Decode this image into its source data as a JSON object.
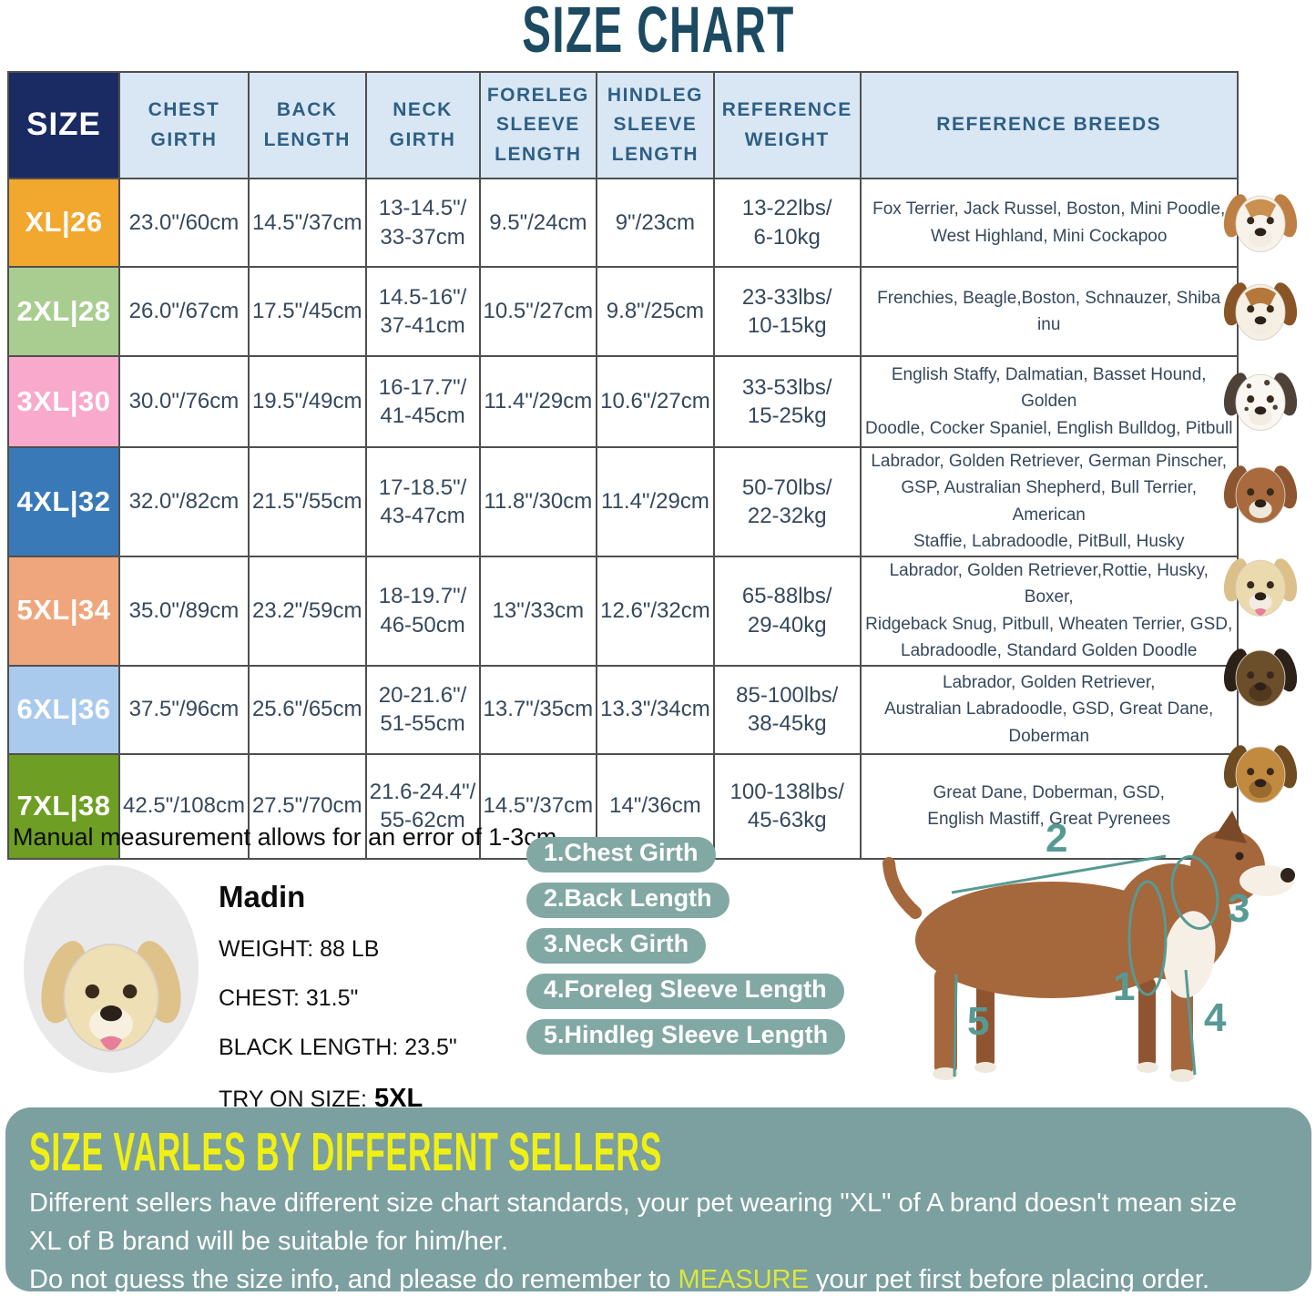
{
  "title": "SIZE CHART",
  "table": {
    "header": {
      "size": "SIZE",
      "columns": [
        "CHEST\nGIRTH",
        "BACK\nLENGTH",
        "NECK\nGIRTH",
        "FORELEG\nSLEEVE\nLENGTH",
        "HINDLEG\nSLEEVE\nLENGTH",
        "REFERENCE\nWEIGHT",
        "REFERENCE BREEDS"
      ]
    },
    "rows": [
      {
        "size": "XL|26",
        "size_color": "#F2A72E",
        "chest_girth": "23.0\"/60cm",
        "back_length": "14.5\"/37cm",
        "neck_girth": "13-14.5\"/\n33-37cm",
        "foreleg_sleeve": "9.5\"/24cm",
        "hindleg_sleeve": "9\"/23cm",
        "reference_weight": "13-22lbs/\n6-10kg",
        "reference_breeds": "Fox Terrier, Jack Russel, Boston, Mini Poodle,\nWest Highland, Mini Cockapoo",
        "photo": "jack-russell-terrier-photo",
        "dog_colors": {
          "head": "#F7F3EB",
          "ear": "#BE7F45",
          "crown": "#C9904F"
        }
      },
      {
        "size": "2XL|28",
        "size_color": "#A9CD90",
        "chest_girth": "26.0\"/67cm",
        "back_length": "17.5\"/45cm",
        "neck_girth": "14.5-16\"/\n37-41cm",
        "foreleg_sleeve": "10.5\"/27cm",
        "hindleg_sleeve": "9.8\"/25cm",
        "reference_weight": "23-33lbs/\n10-15kg",
        "reference_breeds": "Frenchies, Beagle,Boston, Schnauzer, Shiba inu",
        "photo": "beagle-photo",
        "dog_colors": {
          "head": "#F6EFE3",
          "ear": "#8A5526",
          "crown": "#B5773C"
        }
      },
      {
        "size": "3XL|30",
        "size_color": "#F8A9CC",
        "chest_girth": "30.0\"/76cm",
        "back_length": "19.5\"/49cm",
        "neck_girth": "16-17.7\"/\n41-45cm",
        "foreleg_sleeve": "11.4\"/29cm",
        "hindleg_sleeve": "10.6\"/27cm",
        "reference_weight": "33-53lbs/\n15-25kg",
        "reference_breeds": "English Staffy, Dalmatian, Basset Hound, Golden\nDoodle, Cocker Spaniel, English Bulldog, Pitbull",
        "photo": "dalmatian-photo",
        "dog_colors": {
          "head": "#FAF7F2",
          "ear": "#4E4238",
          "spots": true
        }
      },
      {
        "size": "4XL|32",
        "size_color": "#3979B7",
        "chest_girth": "32.0\"/82cm",
        "back_length": "21.5\"/55cm",
        "neck_girth": "17-18.5\"/\n43-47cm",
        "foreleg_sleeve": "11.8\"/30cm",
        "hindleg_sleeve": "11.4\"/29cm",
        "reference_weight": "50-70lbs/\n22-32kg",
        "reference_breeds": "Labrador, Golden Retriever, German Pinscher,\nGSP, Australian Shepherd, Bull Terrier, American\nStaffie, Labradoodle, PitBull, Husky",
        "photo": "american-staffordshire-photo",
        "dog_colors": {
          "head": "#A96A3E",
          "ear": "#8E5630",
          "muzzle": "#EFE7DA"
        }
      },
      {
        "size": "5XL|34",
        "size_color": "#EFA67C",
        "chest_girth": "35.0\"/89cm",
        "back_length": "23.2\"/59cm",
        "neck_girth": "18-19.7\"/\n46-50cm",
        "foreleg_sleeve": "13\"/33cm",
        "hindleg_sleeve": "12.6\"/32cm",
        "reference_weight": "65-88lbs/\n29-40kg",
        "reference_breeds": "Labrador, Golden Retriever,Rottie, Husky, Boxer,\nRidgeback Snug, Pitbull, Wheaten Terrier, GSD,\nLabradoodle, Standard Golden Doodle",
        "photo": "labrador-photo",
        "dog_colors": {
          "head": "#EADAAE",
          "ear": "#DCC089",
          "tongue": true
        }
      },
      {
        "size": "6XL|36",
        "size_color": "#A9CAEC",
        "chest_girth": "37.5\"/96cm",
        "back_length": "25.6\"/65cm",
        "neck_girth": "20-21.6\"/\n51-55cm",
        "foreleg_sleeve": "13.7\"/35cm",
        "hindleg_sleeve": "13.3\"/34cm",
        "reference_weight": "85-100lbs/\n38-45kg",
        "reference_breeds": "Labrador, Golden Retriever,\nAustralian Labradoodle, GSD, Great Dane,\nDoberman",
        "photo": "german-shepherd-photo",
        "dog_colors": {
          "head": "#6B4E2A",
          "ear": "#2B2118",
          "muzzle": "#51391F"
        }
      },
      {
        "size": "7XL|38",
        "size_color": "#6E9E23",
        "chest_girth": "42.5\"/108cm",
        "back_length": "27.5\"/70cm",
        "neck_girth": "21.6-24.4\"/\n55-62cm",
        "foreleg_sleeve": "14.5\"/37cm",
        "hindleg_sleeve": "14\"/36cm",
        "reference_weight": "100-138lbs/\n45-63kg",
        "reference_breeds": "Great Dane, Doberman, GSD,\nEnglish Mastiff, Great Pyrenees",
        "photo": "great-dane-photo",
        "dog_colors": {
          "head": "#C28A3F",
          "ear": "#6E4B20",
          "muzzle": "#9A6A2E"
        }
      }
    ]
  },
  "note": "Manual measurement allows for an error of 1-3cm",
  "model_dog": {
    "name": "Madin",
    "weight": "WEIGHT: 88 LB",
    "chest": "CHEST: 31.5\"",
    "back_length": "BLACK LENGTH: 23.5\"",
    "try_on_label": "TRY ON SIZE:",
    "try_on_size": "5XL",
    "photo": "labrador-model-photo"
  },
  "measure_steps": [
    "1.Chest Girth",
    "2.Back Length",
    "3.Neck Girth",
    "4.Foreleg Sleeve Length",
    "5.Hindleg Sleeve Length"
  ],
  "diagram_numbers": [
    "1",
    "2",
    "3",
    "4",
    "5"
  ],
  "disclaimer": {
    "heading": "SIZE VARLES BY DIFFERENT SELLERS",
    "line1": "Different sellers have different size chart standards, your pet wearing \"XL\" of A brand doesn't mean size",
    "line2": "XL of B brand will be suitable for him/her.",
    "line3_before": "Do not guess the size info, and please do remember to ",
    "highlight": "MEASURE",
    "line3_after": " your pet first before placing order."
  },
  "colors": {
    "title": "#1B4A61",
    "header_bg": "#D9E7F4",
    "header_text": "#2E5F85",
    "size_header_bg": "#1A2A63",
    "cell_text": "#35485C",
    "pill_bg": "#82A8A3",
    "panel_bg": "#7C9FA0",
    "heading_yellow": "#F0F014",
    "highlight_yellow": "#D9E83C",
    "annotation_teal": "#579A94"
  }
}
